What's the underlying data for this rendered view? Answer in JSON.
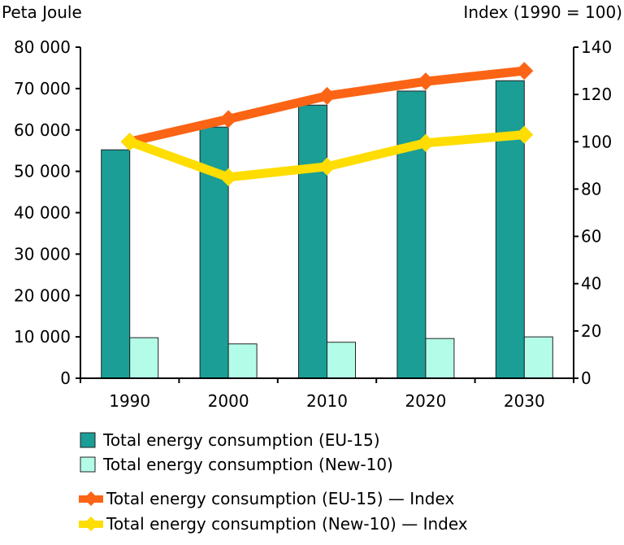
{
  "chart_data": {
    "type": "bar",
    "title": "",
    "categories": [
      "1990",
      "2000",
      "2010",
      "2020",
      "2030"
    ],
    "y_left": {
      "label": "Peta Joule",
      "range": [
        0,
        80000
      ],
      "ticks": [
        0,
        10000,
        20000,
        30000,
        40000,
        50000,
        60000,
        70000,
        80000
      ],
      "tick_labels": [
        "0",
        "10 000",
        "20 000",
        "30 000",
        "40 000",
        "50 000",
        "60 000",
        "70 000",
        "80 000"
      ]
    },
    "y_right": {
      "label": "Index (1990 = 100)",
      "range": [
        0,
        140
      ],
      "ticks": [
        0,
        20,
        40,
        60,
        80,
        100,
        120,
        140
      ],
      "tick_labels": [
        "0",
        "20",
        "40",
        "60",
        "80",
        "100",
        "120",
        "140"
      ]
    },
    "grid": false,
    "legend_position": "bottom",
    "bar_series": [
      {
        "name": "Total energy consumption (EU-15)",
        "color": "#1a9e96",
        "axis": "left",
        "values": [
          55200,
          60700,
          66000,
          69400,
          71900
        ]
      },
      {
        "name": "Total energy consumption (New-10)",
        "color": "#b3fce8",
        "axis": "left",
        "values": [
          9800,
          8300,
          8700,
          9600,
          10000
        ]
      }
    ],
    "line_series": [
      {
        "name": "Total energy consumption (EU-15) — Index",
        "color": "#fb6415",
        "axis": "right",
        "marker": "diamond",
        "values": [
          100,
          109.6,
          119.4,
          125.5,
          130
        ]
      },
      {
        "name": "Total energy consumption (New-10) — Index",
        "color": "#ffdd00",
        "axis": "right",
        "marker": "diamond",
        "values": [
          100,
          85,
          89.5,
          99.5,
          103
        ]
      }
    ]
  }
}
